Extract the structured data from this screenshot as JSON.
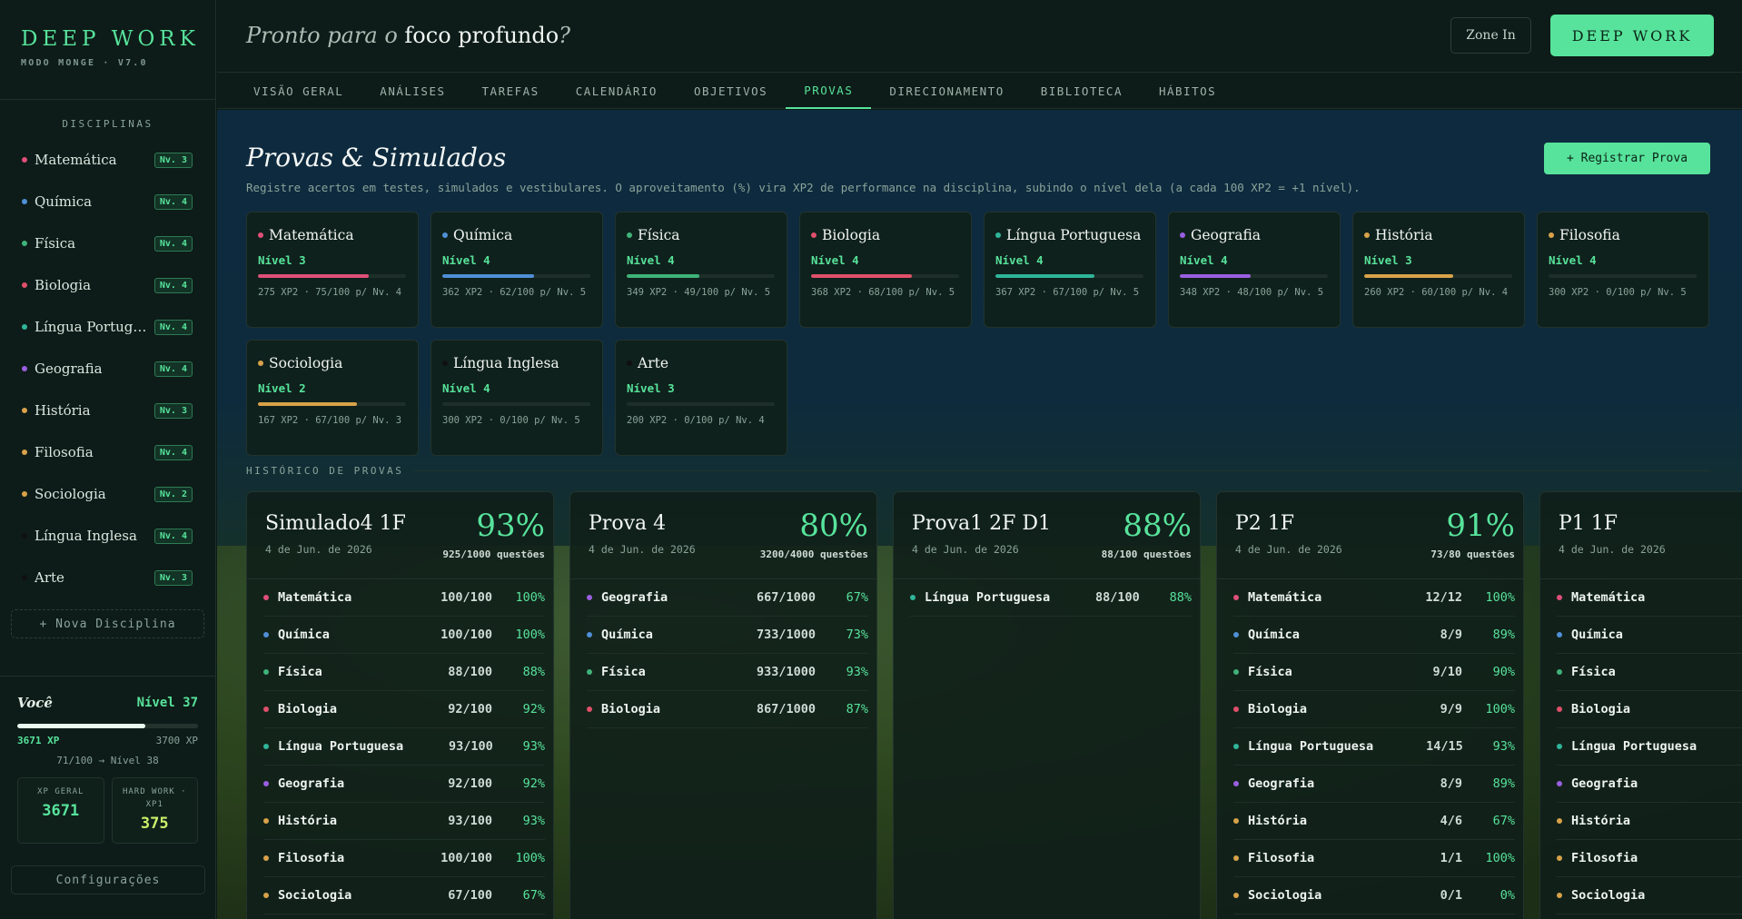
{
  "brand": {
    "title": "DEEP WORK",
    "version": "MODO MONGE · V7.0"
  },
  "sidebar": {
    "section_title": "DISCIPLINAS",
    "items": [
      {
        "label": "Matemática",
        "level": "Nv. 3",
        "color": "#e04f7a"
      },
      {
        "label": "Química",
        "level": "Nv. 4",
        "color": "#4f8fd6"
      },
      {
        "label": "Física",
        "level": "Nv. 4",
        "color": "#3fb37a"
      },
      {
        "label": "Biologia",
        "level": "Nv. 4",
        "color": "#e0506a"
      },
      {
        "label": "Língua Portuguesa",
        "level": "Nv. 4",
        "color": "#2fb59a"
      },
      {
        "label": "Geografia",
        "level": "Nv. 4",
        "color": "#9a5fe0"
      },
      {
        "label": "História",
        "level": "Nv. 3",
        "color": "#d9a24a"
      },
      {
        "label": "Filosofia",
        "level": "Nv. 4",
        "color": "#d9a24a"
      },
      {
        "label": "Sociologia",
        "level": "Nv. 2",
        "color": "#d9a24a"
      },
      {
        "label": "Língua Inglesa",
        "level": "Nv. 4",
        "color": "#101010"
      },
      {
        "label": "Arte",
        "level": "Nv. 3",
        "color": "#101010"
      }
    ],
    "new_discipline": "+ Nova Disciplina",
    "user": {
      "label": "Você",
      "level": "Nível 37",
      "xp": "3671 XP",
      "xp_next": "3700 XP",
      "progress_pct": 71,
      "progress_text": "71/100 → Nível 38",
      "stat1_label": "XP GERAL",
      "stat1_value": "3671",
      "stat2_label": "HARD WORK · XP1",
      "stat2_value": "375"
    },
    "settings": "Configurações"
  },
  "header": {
    "greet_pre": "Pronto para o",
    "greet_bold": "foco profundo",
    "greet_post": "?",
    "zone_in": "Zone In",
    "deep_work": "DEEP WORK"
  },
  "tabs": [
    "VISÃO GERAL",
    "ANÁLISES",
    "TAREFAS",
    "CALENDÁRIO",
    "OBJETIVOS",
    "PROVAS",
    "DIRECIONAMENTO",
    "BIBLIOTECA",
    "HÁBITOS"
  ],
  "active_tab": "PROVAS",
  "main": {
    "title": "Provas & Simulados",
    "register": "+ Registrar Prova",
    "description": "Registre acertos em testes, simulados e vestibulares. O aproveitamento (%) vira XP2 de performance na disciplina, subindo o nível dela (a cada 100 XP2 = +1 nível).",
    "history_title": "HISTÓRICO DE PROVAS"
  },
  "subject_cards": [
    {
      "name": "Matemática",
      "level": "Nível 3",
      "stats": "275 XP2 · 75/100 p/ Nv. 4",
      "progress": 75,
      "color": "#e04f7a"
    },
    {
      "name": "Química",
      "level": "Nível 4",
      "stats": "362 XP2 · 62/100 p/ Nv. 5",
      "progress": 62,
      "color": "#4f8fd6"
    },
    {
      "name": "Física",
      "level": "Nível 4",
      "stats": "349 XP2 · 49/100 p/ Nv. 5",
      "progress": 49,
      "color": "#3fb37a"
    },
    {
      "name": "Biologia",
      "level": "Nível 4",
      "stats": "368 XP2 · 68/100 p/ Nv. 5",
      "progress": 68,
      "color": "#e0506a"
    },
    {
      "name": "Língua Portuguesa",
      "level": "Nível 4",
      "stats": "367 XP2 · 67/100 p/ Nv. 5",
      "progress": 67,
      "color": "#2fb59a"
    },
    {
      "name": "Geografia",
      "level": "Nível 4",
      "stats": "348 XP2 · 48/100 p/ Nv. 5",
      "progress": 48,
      "color": "#9a5fe0"
    },
    {
      "name": "História",
      "level": "Nível 3",
      "stats": "260 XP2 · 60/100 p/ Nv. 4",
      "progress": 60,
      "color": "#d9a24a"
    },
    {
      "name": "Filosofia",
      "level": "Nível 4",
      "stats": "300 XP2 · 0/100 p/ Nv. 5",
      "progress": 0,
      "color": "#d9a24a"
    },
    {
      "name": "Sociologia",
      "level": "Nível 2",
      "stats": "167 XP2 · 67/100 p/ Nv. 3",
      "progress": 67,
      "color": "#d9a24a"
    },
    {
      "name": "Língua Inglesa",
      "level": "Nível 4",
      "stats": "300 XP2 · 0/100 p/ Nv. 5",
      "progress": 0,
      "color": "#101010"
    },
    {
      "name": "Arte",
      "level": "Nível 3",
      "stats": "200 XP2 · 0/100 p/ Nv. 4",
      "progress": 0,
      "color": "#101010"
    }
  ],
  "exams": [
    {
      "title": "Simulado4 1F",
      "date": "4 de Jun. de 2026",
      "pct": "93%",
      "questions": "925/1000 questões",
      "rows": [
        {
          "name": "Matemática",
          "score": "100/100",
          "pct": "100%",
          "color": "#e04f7a"
        },
        {
          "name": "Química",
          "score": "100/100",
          "pct": "100%",
          "color": "#4f8fd6"
        },
        {
          "name": "Física",
          "score": "88/100",
          "pct": "88%",
          "color": "#3fb37a"
        },
        {
          "name": "Biologia",
          "score": "92/100",
          "pct": "92%",
          "color": "#e0506a"
        },
        {
          "name": "Língua Portuguesa",
          "score": "93/100",
          "pct": "93%",
          "color": "#2fb59a"
        },
        {
          "name": "Geografia",
          "score": "92/100",
          "pct": "92%",
          "color": "#9a5fe0"
        },
        {
          "name": "História",
          "score": "93/100",
          "pct": "93%",
          "color": "#d9a24a"
        },
        {
          "name": "Filosofia",
          "score": "100/100",
          "pct": "100%",
          "color": "#d9a24a"
        },
        {
          "name": "Sociologia",
          "score": "67/100",
          "pct": "67%",
          "color": "#d9a24a"
        }
      ]
    },
    {
      "title": "Prova 4",
      "date": "4 de Jun. de 2026",
      "pct": "80%",
      "questions": "3200/4000 questões",
      "rows": [
        {
          "name": "Geografia",
          "score": "667/1000",
          "pct": "67%",
          "color": "#9a5fe0"
        },
        {
          "name": "Química",
          "score": "733/1000",
          "pct": "73%",
          "color": "#4f8fd6"
        },
        {
          "name": "Física",
          "score": "933/1000",
          "pct": "93%",
          "color": "#3fb37a"
        },
        {
          "name": "Biologia",
          "score": "867/1000",
          "pct": "87%",
          "color": "#e0506a"
        }
      ]
    },
    {
      "title": "Prova1 2F D1",
      "date": "4 de Jun. de 2026",
      "pct": "88%",
      "questions": "88/100 questões",
      "rows": [
        {
          "name": "Língua Portuguesa",
          "score": "88/100",
          "pct": "88%",
          "color": "#2fb59a"
        }
      ]
    },
    {
      "title": "P2 1F",
      "date": "4 de Jun. de 2026",
      "pct": "91%",
      "questions": "73/80 questões",
      "rows": [
        {
          "name": "Matemática",
          "score": "12/12",
          "pct": "100%",
          "color": "#e04f7a"
        },
        {
          "name": "Química",
          "score": "8/9",
          "pct": "89%",
          "color": "#4f8fd6"
        },
        {
          "name": "Física",
          "score": "9/10",
          "pct": "90%",
          "color": "#3fb37a"
        },
        {
          "name": "Biologia",
          "score": "9/9",
          "pct": "100%",
          "color": "#e0506a"
        },
        {
          "name": "Língua Portuguesa",
          "score": "14/15",
          "pct": "93%",
          "color": "#2fb59a"
        },
        {
          "name": "Geografia",
          "score": "8/9",
          "pct": "89%",
          "color": "#9a5fe0"
        },
        {
          "name": "História",
          "score": "4/6",
          "pct": "67%",
          "color": "#d9a24a"
        },
        {
          "name": "Filosofia",
          "score": "1/1",
          "pct": "100%",
          "color": "#d9a24a"
        },
        {
          "name": "Sociologia",
          "score": "0/1",
          "pct": "0%",
          "color": "#d9a24a"
        }
      ]
    },
    {
      "title": "P1 1F",
      "date": "4 de Jun. de 2026",
      "pct": "",
      "questions": "",
      "rows": [
        {
          "name": "Matemática",
          "score": "",
          "pct": "",
          "color": "#e04f7a"
        },
        {
          "name": "Química",
          "score": "",
          "pct": "",
          "color": "#4f8fd6"
        },
        {
          "name": "Física",
          "score": "",
          "pct": "",
          "color": "#3fb37a"
        },
        {
          "name": "Biologia",
          "score": "",
          "pct": "",
          "color": "#e0506a"
        },
        {
          "name": "Língua Portuguesa",
          "score": "",
          "pct": "",
          "color": "#2fb59a"
        },
        {
          "name": "Geografia",
          "score": "",
          "pct": "",
          "color": "#9a5fe0"
        },
        {
          "name": "História",
          "score": "",
          "pct": "",
          "color": "#d9a24a"
        },
        {
          "name": "Filosofia",
          "score": "",
          "pct": "",
          "color": "#d9a24a"
        },
        {
          "name": "Sociologia",
          "score": "",
          "pct": "",
          "color": "#d9a24a"
        }
      ]
    }
  ]
}
